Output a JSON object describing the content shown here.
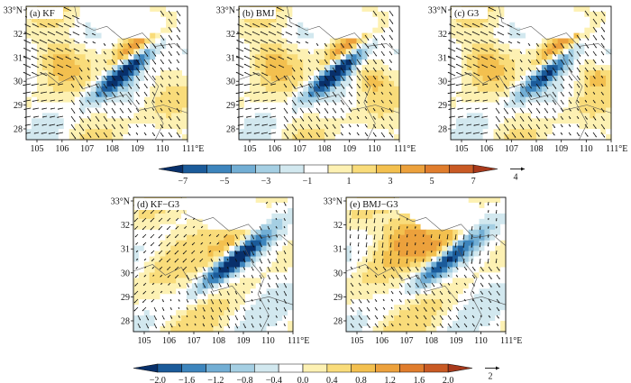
{
  "figure": {
    "panels": [
      {
        "key": "a",
        "label": "(a)",
        "name": "KF",
        "kind": "field"
      },
      {
        "key": "b",
        "label": "(b)",
        "name": "BMJ",
        "kind": "field"
      },
      {
        "key": "c",
        "label": "(c)",
        "name": "G3",
        "kind": "field"
      },
      {
        "key": "d",
        "label": "(d)",
        "name": "KF−G3",
        "kind": "diff"
      },
      {
        "key": "e",
        "label": "(e)",
        "name": "BMJ−G3",
        "kind": "diff"
      }
    ],
    "lat_ticks": [
      "28",
      "29",
      "30",
      "31",
      "32",
      "33°N"
    ],
    "lon_ticks": [
      "105",
      "106",
      "107",
      "108",
      "109",
      "110",
      "111°E"
    ],
    "colorbar_top": {
      "labels": [
        "−7",
        "−5",
        "−3",
        "−1",
        "1",
        "3",
        "5",
        "7"
      ],
      "levels": [
        -7,
        -6,
        -5,
        -4,
        -3,
        -2,
        -1,
        0,
        1,
        2,
        3,
        4,
        5,
        6,
        7
      ],
      "vector_ref": "4"
    },
    "colorbar_bottom": {
      "labels": [
        "−2.0",
        "−1.6",
        "−1.2",
        "−0.8",
        "−0.4",
        "0.0",
        "0.4",
        "0.8",
        "1.2",
        "1.6",
        "2.0"
      ],
      "levels": [
        -2.0,
        -1.8,
        -1.6,
        -1.4,
        -1.2,
        -1.0,
        -0.8,
        -0.6,
        -0.4,
        -0.2,
        0.0,
        0.2,
        0.4,
        0.6,
        0.8,
        1.0,
        1.2,
        1.4,
        1.6,
        1.8,
        2.0
      ],
      "vector_ref": "2"
    },
    "palette": [
      "#08306b",
      "#1b5b9a",
      "#3d85bd",
      "#72aed4",
      "#a5cfe3",
      "#d2e8ef",
      "#ffffff",
      "#fdf1b3",
      "#f9dc7a",
      "#f3c04f",
      "#eca13c",
      "#e07d2d",
      "#c95a24",
      "#a8391b"
    ]
  }
}
